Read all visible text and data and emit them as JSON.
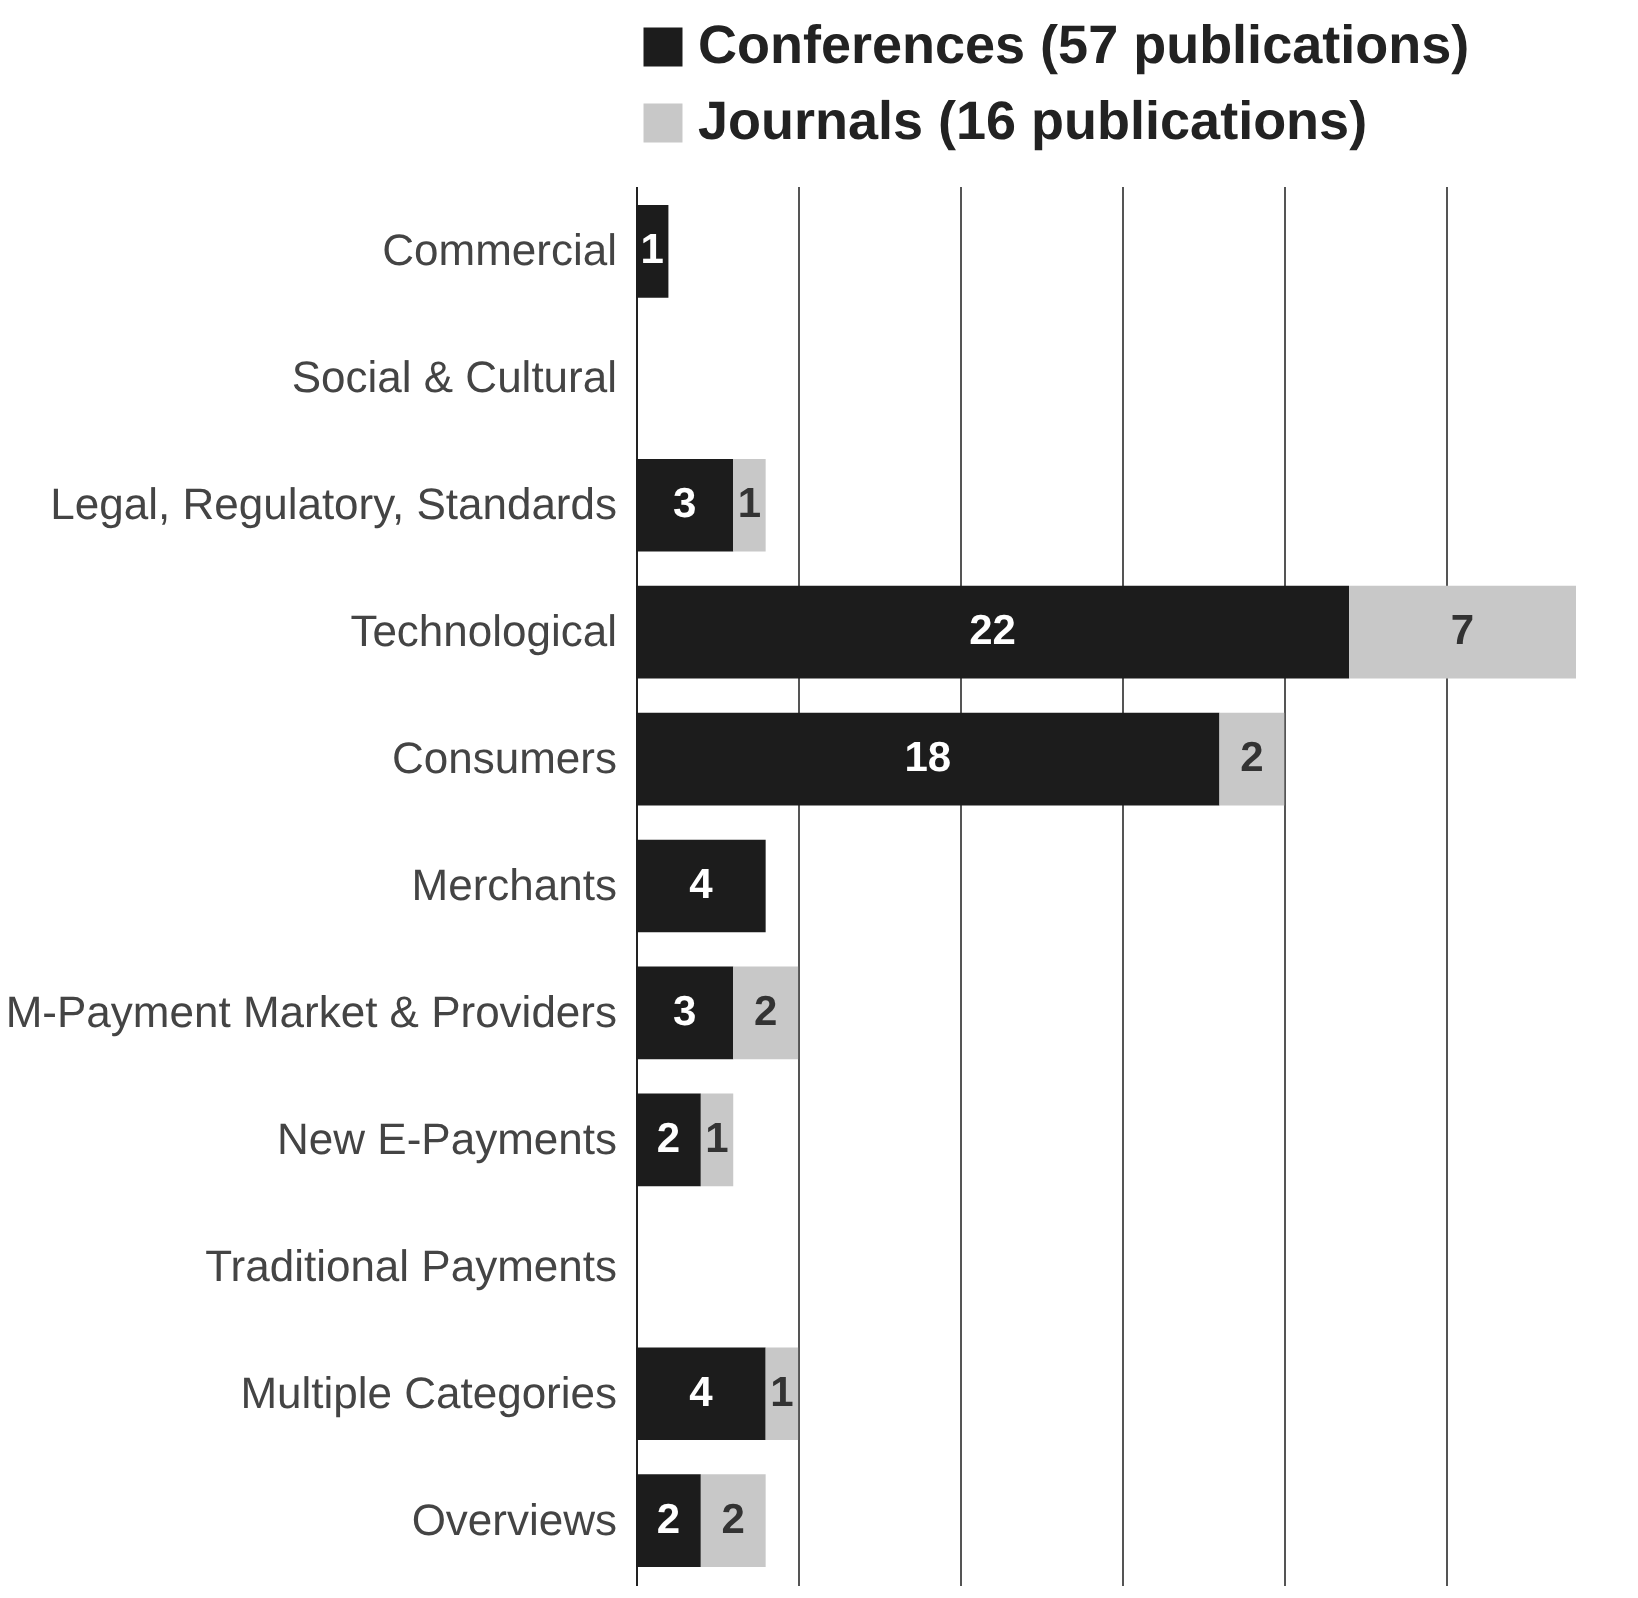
{
  "chart_data": {
    "type": "bar",
    "orientation": "horizontal",
    "stacked": true,
    "data_labels": true,
    "legend": "top",
    "grid": "x",
    "tick_labels": "y",
    "categories": [
      "Commercial",
      "Social & Cultural",
      "Legal, Regulatory, Standards",
      "Technological",
      "Consumers",
      "Merchants",
      "M-Payment Market & Providers",
      "New E-Payments",
      "Traditional Payments",
      "Multiple Categories",
      "Overviews"
    ],
    "series": [
      {
        "name": "Conferences (57 publications)",
        "color": "#1c1c1c",
        "values": [
          1,
          null,
          3,
          22,
          18,
          4,
          3,
          2,
          null,
          4,
          2
        ]
      },
      {
        "name": "Journals (16 publications)",
        "color": "#c8c8c8",
        "values": [
          null,
          null,
          1,
          7,
          2,
          null,
          2,
          1,
          null,
          1,
          2
        ]
      }
    ],
    "xlim": [
      0,
      29
    ],
    "xticks": [
      {
        "value": 0,
        "label": null
      },
      {
        "value": 5,
        "label": null
      },
      {
        "value": 10,
        "label": null
      },
      {
        "value": 15,
        "label": null
      },
      {
        "value": 20,
        "label": null
      },
      {
        "value": 25,
        "label": null
      }
    ]
  }
}
